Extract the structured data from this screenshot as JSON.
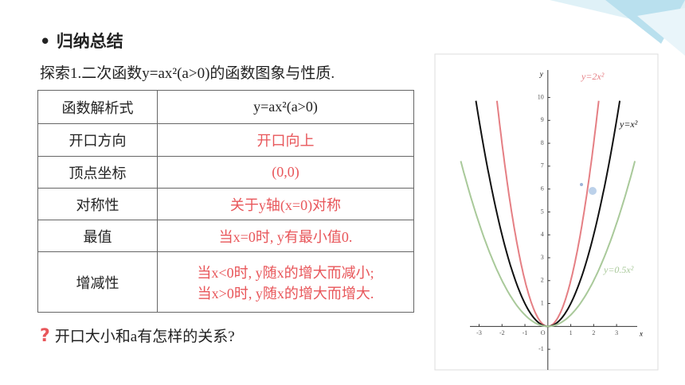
{
  "heading": "归纳总结",
  "intro": "探索1.二次函数y=ax²(a>0)的函数图象与性质.",
  "table": {
    "header": [
      "函数解析式",
      "y=ax²(a>0)"
    ],
    "rows": [
      [
        "开口方向",
        "开口向上"
      ],
      [
        "顶点坐标",
        "(0,0)"
      ],
      [
        "对称性",
        "关于y轴(x=0)对称"
      ],
      [
        "最值",
        "当x=0时, y有最小值0."
      ],
      [
        "增减性",
        [
          "当x<0时, y随x的增大而减小;",
          "当x>0时, y随x的增大而增大."
        ]
      ]
    ]
  },
  "question": "开口大小和a有怎样的关系?",
  "graph": {
    "x_label": "x",
    "y_label": "y",
    "origin_label": "O",
    "xlim": [
      -3.4,
      3.9
    ],
    "ylim": [
      -1.9,
      11.2
    ],
    "xticks": [
      -3,
      -2,
      -1,
      1,
      2,
      3
    ],
    "yticks": [
      -1,
      1,
      2,
      3,
      4,
      5,
      6,
      7,
      8,
      9,
      10
    ],
    "curves": [
      {
        "label": "y=2x²",
        "coefficient": 2,
        "color": "#e57f84"
      },
      {
        "label": "y=x²",
        "coefficient": 1,
        "color": "#111111"
      },
      {
        "label": "y=0.5x²",
        "coefficient": 0.5,
        "color": "#a9c99a"
      }
    ]
  }
}
